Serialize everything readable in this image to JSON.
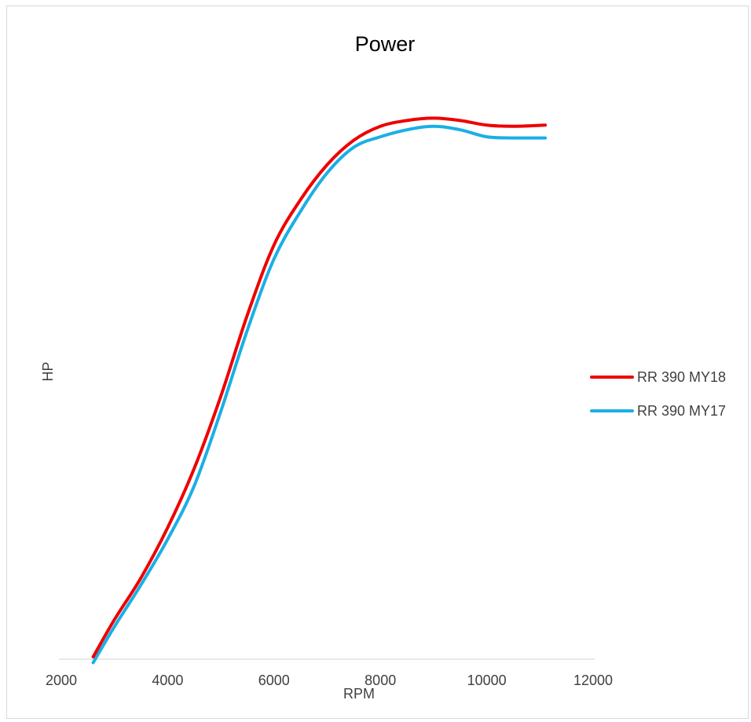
{
  "chart_data": {
    "type": "line",
    "title": "Power",
    "xlabel": "RPM",
    "ylabel": "HP",
    "xlim": [
      2000,
      12000
    ],
    "ylim": [
      0,
      47
    ],
    "xticks": [
      2000,
      4000,
      6000,
      8000,
      10000,
      12000
    ],
    "show_y_tick_labels": false,
    "grid": false,
    "legend_position": "right",
    "series": [
      {
        "name": "RR 390 MY18",
        "color": "#ee0000",
        "points": [
          [
            2600,
            0.2
          ],
          [
            3000,
            3.4
          ],
          [
            3500,
            7.0
          ],
          [
            4000,
            11.3
          ],
          [
            4500,
            16.4
          ],
          [
            5000,
            22.6
          ],
          [
            5500,
            29.6
          ],
          [
            6000,
            35.6
          ],
          [
            6500,
            39.5
          ],
          [
            7000,
            42.5
          ],
          [
            7500,
            44.6
          ],
          [
            8000,
            45.8
          ],
          [
            8500,
            46.3
          ],
          [
            9000,
            46.5
          ],
          [
            9500,
            46.3
          ],
          [
            10000,
            45.9
          ],
          [
            10500,
            45.8
          ],
          [
            11100,
            45.9
          ]
        ]
      },
      {
        "name": "RR 390 MY17",
        "color": "#1aafe6",
        "points": [
          [
            2600,
            -0.3
          ],
          [
            3000,
            2.8
          ],
          [
            3500,
            6.4
          ],
          [
            4000,
            10.3
          ],
          [
            4500,
            14.9
          ],
          [
            5000,
            21.3
          ],
          [
            5500,
            28.3
          ],
          [
            6000,
            34.4
          ],
          [
            6500,
            38.5
          ],
          [
            7000,
            41.8
          ],
          [
            7500,
            44.0
          ],
          [
            8000,
            44.9
          ],
          [
            8500,
            45.5
          ],
          [
            9000,
            45.8
          ],
          [
            9500,
            45.5
          ],
          [
            10000,
            44.9
          ],
          [
            10500,
            44.8
          ],
          [
            11100,
            44.8
          ]
        ]
      }
    ]
  }
}
